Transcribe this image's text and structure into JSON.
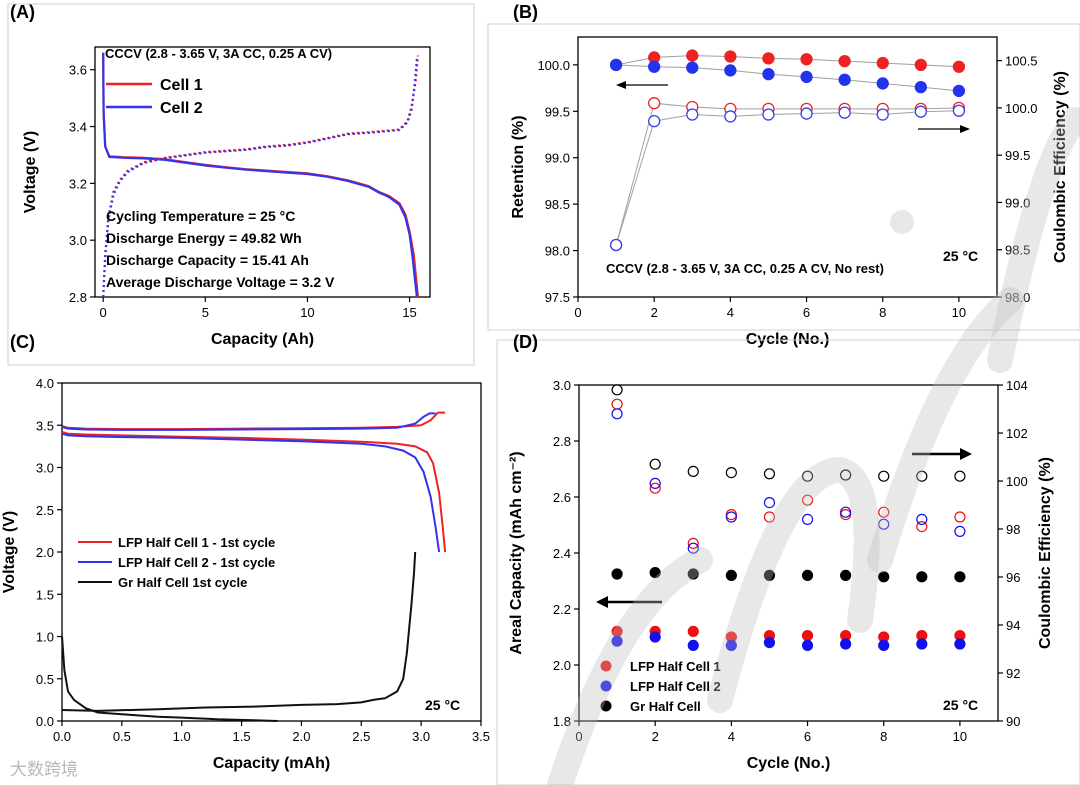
{
  "panels": {
    "A": {
      "label": "(A)",
      "annotation": "CCCV (2.8 - 3.65 V, 3A CC, 0.25 A CV)",
      "stats": [
        "Cycling Temperature = 25 °C",
        "Discharge Energy = 49.82 Wh",
        "Discharge Capacity = 15.41 Ah",
        "Average Discharge Voltage = 3.2 V"
      ],
      "legend": [
        {
          "name": "Cell 1",
          "color": "#ee2222"
        },
        {
          "name": "Cell 2",
          "color": "#3333ee"
        }
      ]
    },
    "B": {
      "label": "(B)",
      "annotation": "CCCV (2.8 - 3.65 V, 3A CC, 0.25 A CV, No rest)",
      "temperature": "25 °C"
    },
    "C": {
      "label": "(C)",
      "temperature": "25 °C",
      "legend": [
        {
          "name": "LFP Half Cell 1 - 1st cycle",
          "color": "#ee2222"
        },
        {
          "name": "LFP Half Cell 2 - 1st cycle",
          "color": "#3333ee"
        },
        {
          "name": "Gr Half Cell 1st cycle",
          "color": "#111111"
        }
      ]
    },
    "D": {
      "label": "(D)",
      "temperature": "25 °C",
      "legend": [
        {
          "name": "LFP Half Cell 1",
          "color": "#ee1111"
        },
        {
          "name": "LFP Half Cell 2",
          "color": "#1111ee"
        },
        {
          "name": "Gr Half Cell",
          "color": "#000000"
        }
      ]
    }
  },
  "watermark": "大数跨境",
  "chart_data": [
    {
      "id": "A",
      "type": "line",
      "xlabel": "Capacity (Ah)",
      "ylabel": "Voltage (V)",
      "xlim": [
        -0.4,
        16
      ],
      "ylim": [
        2.8,
        3.68
      ],
      "xticks": [
        0,
        5,
        10,
        15
      ],
      "yticks": [
        2.8,
        3.0,
        3.2,
        3.4,
        3.6
      ],
      "series": [
        {
          "name": "Cell 1 discharge",
          "color": "#ee2222",
          "style": "solid",
          "x": [
            0,
            0.02,
            0.1,
            0.3,
            1,
            2,
            3,
            4,
            5,
            6,
            7,
            8,
            9,
            10,
            11,
            12,
            13,
            13.5,
            14,
            14.5,
            14.8,
            15.0,
            15.2,
            15.3,
            15.41
          ],
          "y": [
            3.66,
            3.45,
            3.33,
            3.295,
            3.292,
            3.29,
            3.285,
            3.275,
            3.265,
            3.257,
            3.25,
            3.245,
            3.24,
            3.235,
            3.225,
            3.21,
            3.19,
            3.17,
            3.155,
            3.13,
            3.09,
            3.03,
            2.95,
            2.88,
            2.8
          ]
        },
        {
          "name": "Cell 2 discharge",
          "color": "#3333ee",
          "style": "solid",
          "x": [
            0,
            0.02,
            0.1,
            0.3,
            1,
            2,
            3,
            4,
            5,
            6,
            7,
            8,
            9,
            10,
            11,
            12,
            13,
            13.5,
            14,
            14.5,
            14.8,
            15.0,
            15.15,
            15.25,
            15.36
          ],
          "y": [
            3.66,
            3.45,
            3.33,
            3.293,
            3.29,
            3.288,
            3.283,
            3.273,
            3.263,
            3.255,
            3.248,
            3.243,
            3.238,
            3.233,
            3.223,
            3.208,
            3.188,
            3.168,
            3.152,
            3.125,
            3.08,
            3.02,
            2.94,
            2.87,
            2.8
          ]
        },
        {
          "name": "Cell 1 charge",
          "color": "#ee2222",
          "style": "dotted",
          "x": [
            0,
            0.1,
            0.25,
            0.5,
            0.8,
            1.2,
            2,
            3,
            4,
            5,
            6,
            7,
            8,
            9,
            10,
            11,
            12,
            13,
            13.8,
            14.5,
            14.9,
            15.1,
            15.3,
            15.41
          ],
          "y": [
            2.8,
            2.95,
            3.08,
            3.17,
            3.21,
            3.245,
            3.275,
            3.29,
            3.3,
            3.31,
            3.315,
            3.32,
            3.33,
            3.335,
            3.345,
            3.36,
            3.375,
            3.38,
            3.385,
            3.39,
            3.42,
            3.47,
            3.56,
            3.65
          ]
        },
        {
          "name": "Cell 2 charge",
          "color": "#3333ee",
          "style": "dotted",
          "x": [
            0,
            0.1,
            0.25,
            0.5,
            0.8,
            1.2,
            2,
            3,
            4,
            5,
            6,
            7,
            8,
            9,
            10,
            11,
            12,
            13,
            13.8,
            14.5,
            14.9,
            15.1,
            15.25,
            15.36
          ],
          "y": [
            2.8,
            2.94,
            3.07,
            3.16,
            3.205,
            3.24,
            3.272,
            3.288,
            3.298,
            3.308,
            3.313,
            3.318,
            3.328,
            3.333,
            3.343,
            3.358,
            3.373,
            3.378,
            3.383,
            3.388,
            3.415,
            3.46,
            3.55,
            3.64
          ]
        }
      ]
    },
    {
      "id": "B",
      "type": "scatter",
      "xlabel": "Cycle (No.)",
      "ylabel": "Retention (%)",
      "y2label": "Coulombic Efficiency (%)",
      "xlim": [
        0,
        11
      ],
      "ylim": [
        97.5,
        100.3
      ],
      "y2lim": [
        98.0,
        100.75
      ],
      "xticks": [
        0,
        2,
        4,
        6,
        8,
        10
      ],
      "yticks": [
        97.5,
        98.0,
        98.5,
        99.0,
        99.5,
        100.0
      ],
      "y2ticks": [
        98.0,
        98.5,
        99.0,
        99.5,
        100.0,
        100.5
      ],
      "series": [
        {
          "name": "Cell 1 retention",
          "axis": "left",
          "color": "#ee2222",
          "filled": true,
          "x": [
            1,
            2,
            3,
            4,
            5,
            6,
            7,
            8,
            9,
            10
          ],
          "y": [
            100.0,
            100.08,
            100.1,
            100.09,
            100.07,
            100.06,
            100.04,
            100.02,
            100.0,
            99.98
          ]
        },
        {
          "name": "Cell 2 retention",
          "axis": "left",
          "color": "#2233ee",
          "filled": true,
          "x": [
            1,
            2,
            3,
            4,
            5,
            6,
            7,
            8,
            9,
            10
          ],
          "y": [
            100.0,
            99.98,
            99.97,
            99.94,
            99.9,
            99.87,
            99.84,
            99.8,
            99.76,
            99.72
          ]
        },
        {
          "name": "Cell 1 CE",
          "axis": "right",
          "color": "#ee2222",
          "filled": false,
          "x": [
            1,
            2,
            3,
            4,
            5,
            6,
            7,
            8,
            9,
            10
          ],
          "y": [
            98.55,
            100.05,
            100.01,
            99.99,
            99.99,
            99.99,
            99.99,
            99.99,
            99.99,
            100.0
          ]
        },
        {
          "name": "Cell 2 CE",
          "axis": "right",
          "color": "#3344ee",
          "filled": false,
          "x": [
            1,
            2,
            3,
            4,
            5,
            6,
            7,
            8,
            9,
            10
          ],
          "y": [
            98.55,
            99.86,
            99.93,
            99.91,
            99.93,
            99.94,
            99.95,
            99.93,
            99.96,
            99.97
          ]
        }
      ]
    },
    {
      "id": "C",
      "type": "line",
      "xlabel": "Capacity (mAh)",
      "ylabel": "Voltage (V)",
      "xlim": [
        0,
        3.5
      ],
      "ylim": [
        0,
        4.0
      ],
      "xticks": [
        0.0,
        0.5,
        1.0,
        1.5,
        2.0,
        2.5,
        3.0,
        3.5
      ],
      "yticks": [
        0.0,
        0.5,
        1.0,
        1.5,
        2.0,
        2.5,
        3.0,
        3.5,
        4.0
      ],
      "series": [
        {
          "name": "LFP Half Cell 1 - 1st cycle (charge)",
          "color": "#ee2222",
          "x": [
            0,
            0.05,
            0.2,
            0.5,
            1.0,
            1.5,
            2.0,
            2.5,
            2.8,
            3.0,
            3.08,
            3.14,
            3.2
          ],
          "y": [
            3.49,
            3.47,
            3.46,
            3.455,
            3.455,
            3.46,
            3.465,
            3.47,
            3.48,
            3.5,
            3.56,
            3.65,
            3.65
          ]
        },
        {
          "name": "LFP Half Cell 1 - 1st cycle (discharge)",
          "color": "#ee2222",
          "x": [
            0,
            0.05,
            0.2,
            0.5,
            1.0,
            1.5,
            2.0,
            2.5,
            2.8,
            2.95,
            3.05,
            3.1,
            3.15,
            3.18,
            3.2
          ],
          "y": [
            3.42,
            3.4,
            3.39,
            3.38,
            3.365,
            3.35,
            3.33,
            3.305,
            3.28,
            3.25,
            3.18,
            3.05,
            2.7,
            2.3,
            2.0
          ]
        },
        {
          "name": "LFP Half Cell 2 - 1st cycle (charge)",
          "color": "#3333ee",
          "x": [
            0,
            0.05,
            0.2,
            0.5,
            1.0,
            1.5,
            2.0,
            2.5,
            2.8,
            2.95,
            3.02,
            3.07,
            3.12
          ],
          "y": [
            3.48,
            3.46,
            3.45,
            3.445,
            3.445,
            3.45,
            3.455,
            3.46,
            3.47,
            3.52,
            3.6,
            3.64,
            3.64
          ]
        },
        {
          "name": "LFP Half Cell 2 - 1st cycle (discharge)",
          "color": "#3333ee",
          "x": [
            0,
            0.05,
            0.2,
            0.5,
            1.0,
            1.5,
            2.0,
            2.5,
            2.7,
            2.85,
            2.95,
            3.02,
            3.08,
            3.12,
            3.15
          ],
          "y": [
            3.4,
            3.38,
            3.37,
            3.36,
            3.35,
            3.33,
            3.31,
            3.28,
            3.25,
            3.2,
            3.12,
            2.95,
            2.65,
            2.3,
            2.0
          ]
        },
        {
          "name": "Gr Half Cell 1st cycle (lithiation)",
          "color": "#111111",
          "x": [
            0,
            0.02,
            0.05,
            0.1,
            0.2,
            0.3,
            0.5,
            0.8,
            1.0,
            1.3,
            1.6,
            1.8
          ],
          "y": [
            1.0,
            0.6,
            0.35,
            0.25,
            0.15,
            0.1,
            0.08,
            0.05,
            0.04,
            0.02,
            0.01,
            0.0
          ]
        },
        {
          "name": "Gr Half Cell 1st cycle (delithiation)",
          "color": "#111111",
          "x": [
            0,
            0.3,
            0.8,
            1.2,
            1.6,
            2.0,
            2.3,
            2.5,
            2.6,
            2.7,
            2.8,
            2.85,
            2.88,
            2.9,
            2.92,
            2.94,
            2.95
          ],
          "y": [
            0.13,
            0.12,
            0.14,
            0.16,
            0.17,
            0.19,
            0.2,
            0.22,
            0.25,
            0.27,
            0.35,
            0.5,
            0.8,
            1.1,
            1.4,
            1.75,
            2.0
          ]
        }
      ]
    },
    {
      "id": "D",
      "type": "scatter",
      "xlabel": "Cycle (No.)",
      "ylabel": "Areal Capacity (mAh cm⁻²)",
      "y2label": "Coulombic Efficiency (%)",
      "xlim": [
        0,
        11
      ],
      "ylim": [
        1.8,
        3.0
      ],
      "y2lim": [
        90,
        104
      ],
      "xticks": [
        0,
        2,
        4,
        6,
        8,
        10
      ],
      "yticks": [
        1.8,
        2.0,
        2.2,
        2.4,
        2.6,
        2.8,
        3.0
      ],
      "y2ticks": [
        90,
        92,
        94,
        96,
        98,
        100,
        102,
        104
      ],
      "series": [
        {
          "name": "LFP Half Cell 1 capacity",
          "axis": "left",
          "color": "#ee1111",
          "filled": true,
          "x": [
            1,
            2,
            3,
            4,
            5,
            6,
            7,
            8,
            9,
            10
          ],
          "y": [
            2.12,
            2.12,
            2.12,
            2.1,
            2.105,
            2.105,
            2.105,
            2.1,
            2.105,
            2.105
          ]
        },
        {
          "name": "LFP Half Cell 2 capacity",
          "axis": "left",
          "color": "#1111ee",
          "filled": true,
          "x": [
            1,
            2,
            3,
            4,
            5,
            6,
            7,
            8,
            9,
            10
          ],
          "y": [
            2.085,
            2.1,
            2.07,
            2.07,
            2.08,
            2.07,
            2.075,
            2.07,
            2.075,
            2.075
          ]
        },
        {
          "name": "Gr Half Cell capacity",
          "axis": "left",
          "color": "#000000",
          "filled": true,
          "x": [
            1,
            2,
            3,
            4,
            5,
            6,
            7,
            8,
            9,
            10
          ],
          "y": [
            2.325,
            2.33,
            2.325,
            2.32,
            2.32,
            2.32,
            2.32,
            2.315,
            2.315,
            2.315
          ]
        },
        {
          "name": "LFP Half Cell 1 CE",
          "axis": "right",
          "color": "#ee1111",
          "filled": false,
          "x": [
            1,
            2,
            3,
            4,
            5,
            6,
            7,
            8,
            9,
            10
          ],
          "y": [
            103.2,
            99.7,
            97.4,
            98.6,
            98.5,
            99.2,
            98.6,
            98.7,
            98.1,
            98.5
          ]
        },
        {
          "name": "LFP Half Cell 2 CE",
          "axis": "right",
          "color": "#1111ee",
          "filled": false,
          "x": [
            1,
            2,
            3,
            4,
            5,
            6,
            7,
            8,
            9,
            10
          ],
          "y": [
            102.8,
            99.9,
            97.2,
            98.5,
            99.1,
            98.4,
            98.7,
            98.2,
            98.4,
            97.9
          ]
        },
        {
          "name": "Gr Half Cell CE",
          "axis": "right",
          "color": "#000000",
          "filled": false,
          "x": [
            1,
            2,
            3,
            4,
            5,
            6,
            7,
            8,
            9,
            10
          ],
          "y": [
            103.8,
            100.7,
            100.4,
            100.35,
            100.3,
            100.2,
            100.25,
            100.2,
            100.2,
            100.2
          ]
        }
      ]
    }
  ]
}
